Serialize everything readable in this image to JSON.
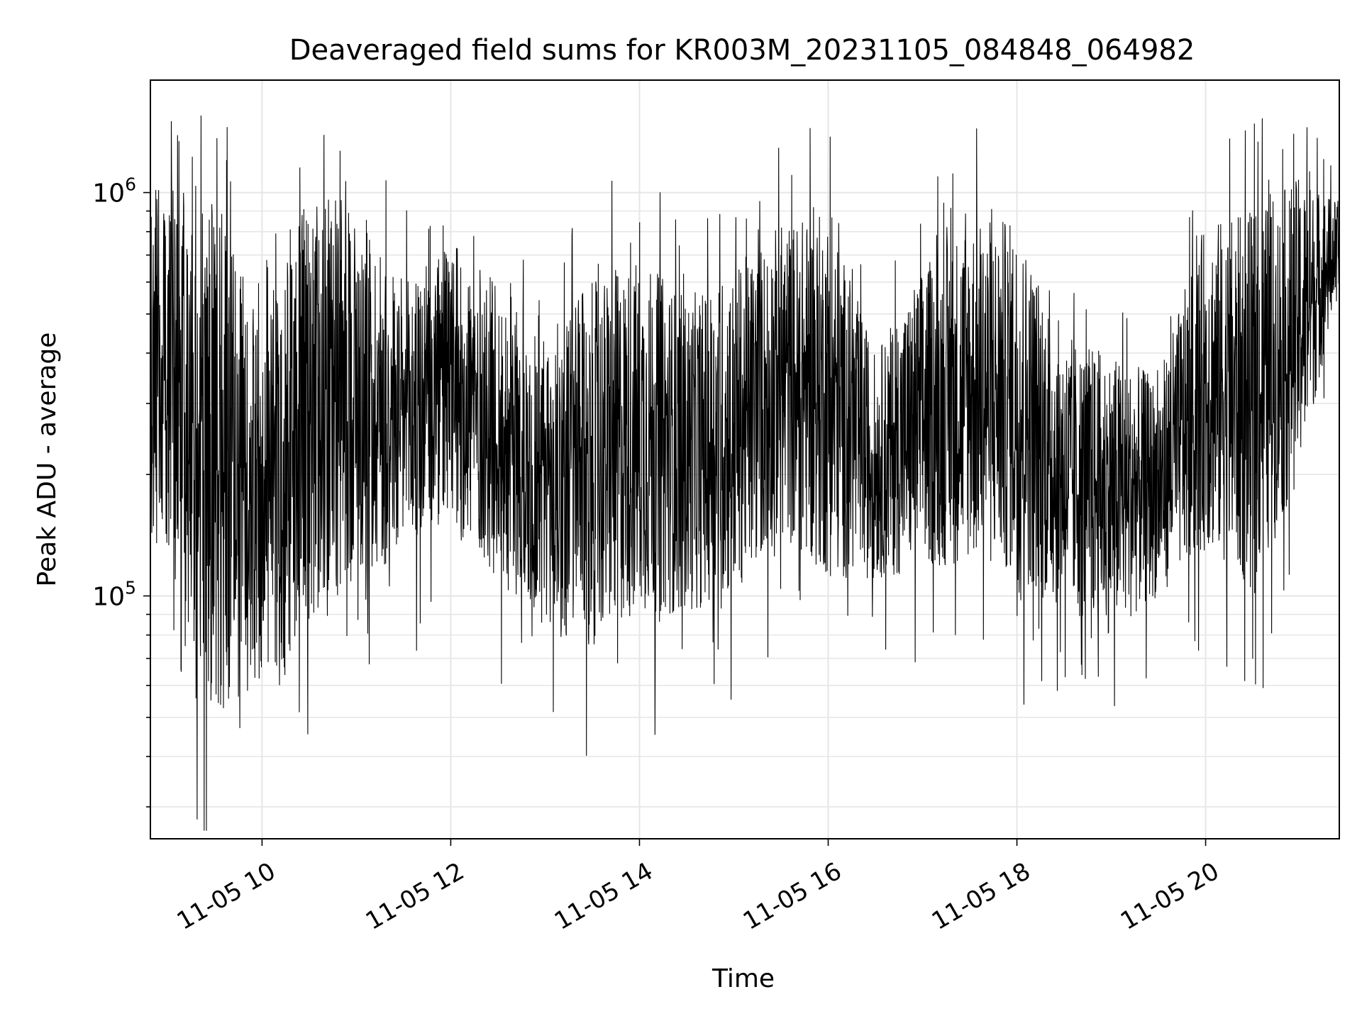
{
  "chart_data": {
    "type": "line",
    "title": "Deaveraged field sums for KR003M_20231105_084848_064982",
    "xlabel": "Time",
    "ylabel": "Peak ADU - average",
    "x_ticks": [
      "11-05 10",
      "11-05 12",
      "11-05 14",
      "11-05 16",
      "11-05 18",
      "11-05 20"
    ],
    "x_range": [
      "2023-11-05 08:49",
      "2023-11-05 21:25"
    ],
    "y_scale": "log",
    "y_ticks": [
      {
        "base": "10",
        "exp": "5",
        "value": 100000
      },
      {
        "base": "10",
        "exp": "6",
        "value": 1000000
      }
    ],
    "ylim": [
      25000,
      1900000
    ],
    "grid": true,
    "line_color": "#000000",
    "grid_color": "#e6e6e6",
    "series": [
      {
        "values_approx_envelope": [
          {
            "time": "2023-11-05 09:00",
            "low": 120000,
            "high": 1100000
          },
          {
            "time": "2023-11-05 09:30",
            "low": 50000,
            "high": 1000000
          },
          {
            "time": "2023-11-05 10:00",
            "low": 60000,
            "high": 450000
          },
          {
            "time": "2023-11-05 10:20",
            "low": 65000,
            "high": 900000
          },
          {
            "time": "2023-11-05 10:40",
            "low": 100000,
            "high": 1000000
          },
          {
            "time": "2023-11-05 11:00",
            "low": 110000,
            "high": 950000
          },
          {
            "time": "2023-11-05 11:30",
            "low": 120000,
            "high": 600000
          },
          {
            "time": "2023-11-05 12:00",
            "low": 150000,
            "high": 750000
          },
          {
            "time": "2023-11-05 12:30",
            "low": 110000,
            "high": 600000
          },
          {
            "time": "2023-11-05 13:00",
            "low": 80000,
            "high": 450000
          },
          {
            "time": "2023-11-05 13:30",
            "low": 75000,
            "high": 600000
          },
          {
            "time": "2023-11-05 14:00",
            "low": 90000,
            "high": 700000
          },
          {
            "time": "2023-11-05 14:30",
            "low": 90000,
            "high": 550000
          },
          {
            "time": "2023-11-05 15:00",
            "low": 100000,
            "high": 650000
          },
          {
            "time": "2023-11-05 15:30",
            "low": 140000,
            "high": 850000
          },
          {
            "time": "2023-11-05 16:00",
            "low": 110000,
            "high": 900000
          },
          {
            "time": "2023-11-05 16:30",
            "low": 110000,
            "high": 400000
          },
          {
            "time": "2023-11-05 17:00",
            "low": 115000,
            "high": 650000
          },
          {
            "time": "2023-11-05 17:30",
            "low": 120000,
            "high": 900000
          },
          {
            "time": "2023-11-05 18:00",
            "low": 110000,
            "high": 850000
          },
          {
            "time": "2023-11-05 18:30",
            "low": 90000,
            "high": 450000
          },
          {
            "time": "2023-11-05 19:00",
            "low": 80000,
            "high": 400000
          },
          {
            "time": "2023-11-05 19:30",
            "low": 100000,
            "high": 350000
          },
          {
            "time": "2023-11-05 20:00",
            "low": 130000,
            "high": 850000
          },
          {
            "time": "2023-11-05 20:30",
            "low": 100000,
            "high": 900000
          },
          {
            "time": "2023-11-05 21:00",
            "low": 200000,
            "high": 1100000
          },
          {
            "time": "2023-11-05 21:25",
            "low": 600000,
            "high": 950000
          }
        ]
      }
    ]
  }
}
